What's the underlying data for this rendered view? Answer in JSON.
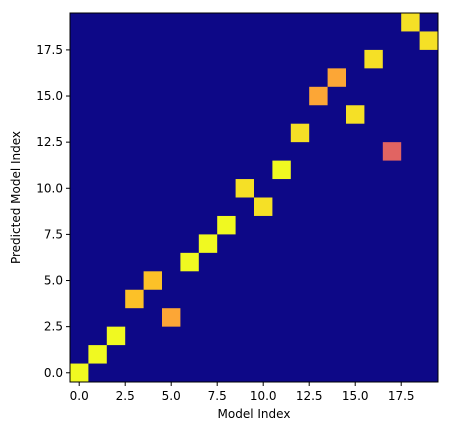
{
  "chart_data": {
    "type": "heatmap",
    "title": "",
    "xlabel": "Model Index",
    "ylabel": "Predicted Model Index",
    "xlim": [
      -0.5,
      19.5
    ],
    "ylim": [
      -0.5,
      19.5
    ],
    "xticks": [
      0.0,
      2.5,
      5.0,
      7.5,
      10.0,
      12.5,
      15.0,
      17.5
    ],
    "xtick_labels": [
      "0.0",
      "2.5",
      "5.0",
      "7.5",
      "10.0",
      "12.5",
      "15.0",
      "17.5"
    ],
    "yticks": [
      0.0,
      2.5,
      5.0,
      7.5,
      10.0,
      12.5,
      15.0,
      17.5
    ],
    "ytick_labels": [
      "0.0",
      "2.5",
      "5.0",
      "7.5",
      "10.0",
      "12.5",
      "15.0",
      "17.5"
    ],
    "grid": false,
    "colormap": "plasma",
    "background_color": "#0d0887",
    "cells": [
      {
        "x": 0,
        "y": 0,
        "color": "#f0f921"
      },
      {
        "x": 1,
        "y": 1,
        "color": "#f0f921"
      },
      {
        "x": 2,
        "y": 2,
        "color": "#f0f921"
      },
      {
        "x": 3,
        "y": 4,
        "color": "#fcc128"
      },
      {
        "x": 4,
        "y": 5,
        "color": "#fcc128"
      },
      {
        "x": 5,
        "y": 3,
        "color": "#fca636"
      },
      {
        "x": 6,
        "y": 6,
        "color": "#f0f921"
      },
      {
        "x": 7,
        "y": 7,
        "color": "#f0f921"
      },
      {
        "x": 8,
        "y": 8,
        "color": "#f0f921"
      },
      {
        "x": 9,
        "y": 10,
        "color": "#f5e026"
      },
      {
        "x": 10,
        "y": 9,
        "color": "#f5e026"
      },
      {
        "x": 11,
        "y": 11,
        "color": "#f0f921"
      },
      {
        "x": 12,
        "y": 13,
        "color": "#f5e026"
      },
      {
        "x": 13,
        "y": 15,
        "color": "#fca636"
      },
      {
        "x": 14,
        "y": 16,
        "color": "#fca636"
      },
      {
        "x": 15,
        "y": 14,
        "color": "#f5e026"
      },
      {
        "x": 16,
        "y": 17,
        "color": "#f5e026"
      },
      {
        "x": 17,
        "y": 12,
        "color": "#e16462"
      },
      {
        "x": 18,
        "y": 19,
        "color": "#f5e026"
      },
      {
        "x": 19,
        "y": 18,
        "color": "#f5e026"
      }
    ]
  }
}
